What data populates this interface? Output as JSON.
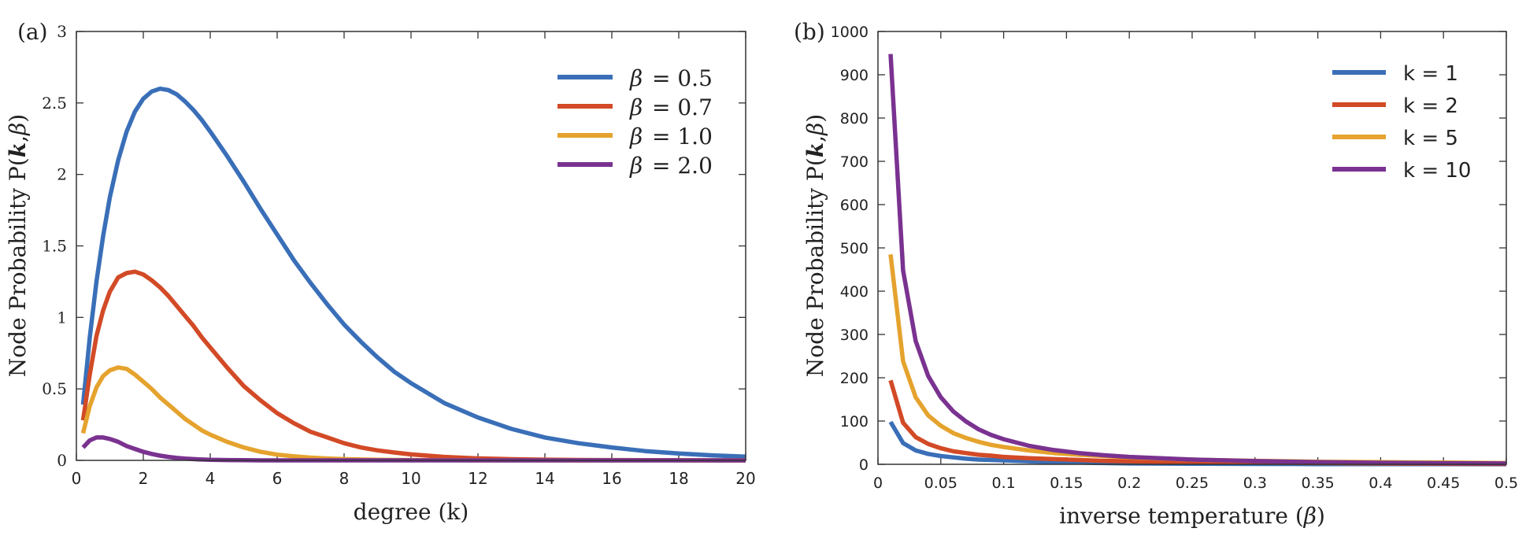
{
  "chart_data": [
    {
      "panel_label": "(a)",
      "type": "line",
      "xlabel": "degree (k)",
      "ylabel_prefix": "Node Probability P(",
      "ylabel_k": "k",
      "ylabel_comma": ",",
      "ylabel_beta": "β",
      "ylabel_suffix": ")",
      "xlim": [
        0,
        20
      ],
      "ylim": [
        0,
        3
      ],
      "xticks": [
        0,
        2,
        4,
        6,
        8,
        10,
        12,
        14,
        16,
        18,
        20
      ],
      "xtick_labels": [
        "0",
        "2",
        "4",
        "6",
        "8",
        "10",
        "12",
        "14",
        "16",
        "18",
        "20"
      ],
      "yticks": [
        0,
        0.5,
        1,
        1.5,
        2,
        2.5,
        3
      ],
      "ytick_labels": [
        "0",
        "0.5",
        "1",
        "1.5",
        "2",
        "2.5",
        "3"
      ],
      "legend_position": "top-right",
      "x": [
        0.2,
        0.4,
        0.6,
        0.8,
        1,
        1.25,
        1.5,
        1.75,
        2,
        2.25,
        2.5,
        2.75,
        3,
        3.25,
        3.5,
        3.75,
        4,
        4.5,
        5,
        5.5,
        6,
        6.5,
        7,
        7.5,
        8,
        8.5,
        9,
        9.5,
        10,
        11,
        12,
        13,
        14,
        15,
        16,
        17,
        18,
        19,
        20
      ],
      "series": [
        {
          "name": "β = 0.5",
          "legend_symbol": "β",
          "legend_value": "= 0.5",
          "color": "#3a6fb8",
          "values": [
            0.39,
            0.86,
            1.25,
            1.57,
            1.84,
            2.1,
            2.3,
            2.44,
            2.53,
            2.58,
            2.6,
            2.59,
            2.56,
            2.51,
            2.45,
            2.38,
            2.3,
            2.13,
            1.95,
            1.76,
            1.58,
            1.4,
            1.24,
            1.09,
            0.95,
            0.83,
            0.72,
            0.62,
            0.54,
            0.4,
            0.3,
            0.22,
            0.16,
            0.12,
            0.09,
            0.065,
            0.048,
            0.035,
            0.026
          ]
        },
        {
          "name": "β = 0.7",
          "legend_symbol": "β",
          "legend_value": "= 0.7",
          "color": "#d24a26",
          "values": [
            0.28,
            0.6,
            0.87,
            1.05,
            1.18,
            1.28,
            1.31,
            1.32,
            1.3,
            1.26,
            1.21,
            1.15,
            1.08,
            1.01,
            0.94,
            0.86,
            0.79,
            0.65,
            0.52,
            0.42,
            0.33,
            0.26,
            0.2,
            0.16,
            0.12,
            0.09,
            0.07,
            0.055,
            0.042,
            0.024,
            0.014,
            0.008,
            0.005,
            0.003,
            0.002,
            0.001,
            0.001,
            0.0,
            0.0
          ]
        },
        {
          "name": "β = 1.0",
          "legend_symbol": "β",
          "legend_value": "= 1.0",
          "color": "#e5a32e",
          "values": [
            0.19,
            0.38,
            0.51,
            0.59,
            0.63,
            0.65,
            0.64,
            0.6,
            0.55,
            0.5,
            0.44,
            0.39,
            0.34,
            0.29,
            0.25,
            0.21,
            0.18,
            0.13,
            0.09,
            0.06,
            0.04,
            0.028,
            0.019,
            0.013,
            0.009,
            0.006,
            0.004,
            0.003,
            0.002,
            0.001,
            0.0,
            0.0,
            0.0,
            0.0,
            0.0,
            0.0,
            0.0,
            0.0,
            0.0
          ]
        },
        {
          "name": "β = 2.0",
          "legend_symbol": "β",
          "legend_value": "= 2.0",
          "color": "#7a3290",
          "values": [
            0.09,
            0.14,
            0.16,
            0.16,
            0.15,
            0.13,
            0.1,
            0.08,
            0.06,
            0.045,
            0.033,
            0.024,
            0.017,
            0.012,
            0.009,
            0.006,
            0.004,
            0.002,
            0.001,
            0.0,
            0.0,
            0.0,
            0.0,
            0.0,
            0.0,
            0.0,
            0.0,
            0.0,
            0.0,
            0.0,
            0.0,
            0.0,
            0.0,
            0.0,
            0.0,
            0.0,
            0.0,
            0.0,
            0.0
          ]
        }
      ]
    },
    {
      "panel_label": "(b)",
      "type": "line",
      "xlabel_prefix": "inverse temperature (",
      "xlabel_beta": "β",
      "xlabel_suffix": ")",
      "ylabel_prefix": "Node Probability P(",
      "ylabel_k": "k",
      "ylabel_comma": ",",
      "ylabel_beta": "β",
      "ylabel_suffix": ")",
      "xlim": [
        0,
        0.5
      ],
      "ylim": [
        0,
        1000
      ],
      "xticks": [
        0,
        0.05,
        0.1,
        0.15,
        0.2,
        0.25,
        0.3,
        0.35,
        0.4,
        0.45,
        0.5
      ],
      "xtick_labels": [
        "0",
        "0.05",
        "0.1",
        "0.15",
        "0.2",
        "0.25",
        "0.3",
        "0.35",
        "0.4",
        "0.45",
        "0.5"
      ],
      "yticks": [
        0,
        100,
        200,
        300,
        400,
        500,
        600,
        700,
        800,
        900,
        1000
      ],
      "ytick_labels": [
        "0",
        "100",
        "200",
        "300",
        "400",
        "500",
        "600",
        "700",
        "800",
        "900",
        "1000"
      ],
      "legend_position": "top-right",
      "x": [
        0.01,
        0.02,
        0.03,
        0.04,
        0.05,
        0.06,
        0.07,
        0.08,
        0.09,
        0.1,
        0.12,
        0.14,
        0.16,
        0.18,
        0.2,
        0.25,
        0.3,
        0.35,
        0.4,
        0.45,
        0.5
      ],
      "series": [
        {
          "name": "k = 1",
          "color": "#3a6fb8",
          "values": [
            98,
            49,
            32,
            24,
            19,
            16,
            13,
            11,
            10,
            9,
            7,
            5,
            4,
            3,
            2,
            1.5,
            1,
            0.6,
            0.4,
            0.3,
            0.2
          ]
        },
        {
          "name": "k = 2",
          "color": "#d24a26",
          "values": [
            194,
            96,
            63,
            47,
            37,
            30,
            26,
            22,
            20,
            17,
            14,
            12,
            10,
            8,
            7,
            5,
            4,
            3,
            2,
            1.5,
            1
          ]
        },
        {
          "name": "k = 5",
          "color": "#e5a32e",
          "values": [
            485,
            238,
            155,
            113,
            89,
            72,
            61,
            52,
            45,
            40,
            32,
            26,
            22,
            19,
            16,
            11,
            8,
            6,
            5,
            4,
            3
          ]
        },
        {
          "name": "k = 10",
          "color": "#7a3290",
          "values": [
            948,
            448,
            285,
            204,
            155,
            122,
            99,
            81,
            68,
            58,
            43,
            33,
            26,
            21,
            17,
            11,
            7.5,
            5,
            3.5,
            2.5,
            2
          ]
        }
      ]
    }
  ]
}
